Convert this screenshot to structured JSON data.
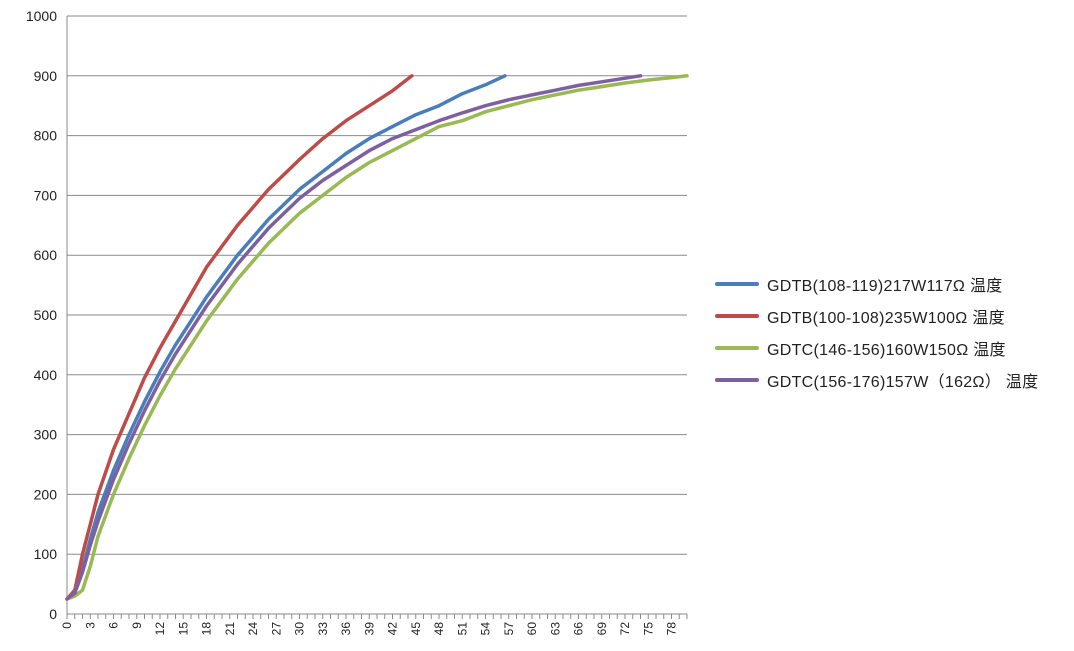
{
  "chart_data": {
    "type": "line",
    "title": "",
    "xlabel": "",
    "ylabel": "",
    "xlim": [
      0,
      80
    ],
    "ylim": [
      0,
      1000
    ],
    "y_ticks": [
      0,
      100,
      200,
      300,
      400,
      500,
      600,
      700,
      800,
      900,
      1000
    ],
    "x_tick_labels": [
      "0",
      "3",
      "6",
      "9",
      "12",
      "15",
      "18",
      "21",
      "24",
      "27",
      "30",
      "33",
      "36",
      "39",
      "42",
      "45",
      "48",
      "51",
      "54",
      "57",
      "60",
      "63",
      "66",
      "69",
      "72",
      "75",
      "78"
    ],
    "x_tick_step_minor": 1,
    "grid": "horizontal",
    "legend_position": "right",
    "series": [
      {
        "name": "GDTB(108-119)217W117Ω 温度",
        "color": "#4a7ebb",
        "x": [
          0,
          1,
          2,
          3,
          4,
          6,
          8,
          10,
          12,
          14,
          16,
          18,
          20,
          22,
          24,
          26,
          28,
          30,
          33,
          36,
          39,
          42,
          45,
          48,
          51,
          54,
          56.5
        ],
        "y": [
          25,
          35,
          75,
          125,
          170,
          240,
          300,
          355,
          405,
          450,
          490,
          530,
          565,
          600,
          630,
          660,
          685,
          710,
          740,
          770,
          795,
          815,
          835,
          850,
          870,
          885,
          900
        ]
      },
      {
        "name": "GDTB(100-108)235W100Ω 温度",
        "color": "#be4b48",
        "x": [
          0,
          1,
          2,
          3,
          4,
          6,
          8,
          10,
          12,
          14,
          16,
          18,
          20,
          22,
          24,
          26,
          28,
          30,
          33,
          36,
          39,
          42,
          44.5
        ],
        "y": [
          25,
          40,
          100,
          150,
          200,
          275,
          335,
          395,
          445,
          490,
          535,
          580,
          615,
          650,
          680,
          710,
          735,
          760,
          795,
          825,
          850,
          875,
          900
        ]
      },
      {
        "name": "GDTC(146-156)160W150Ω 温度",
        "color": "#98b954",
        "x": [
          0,
          1,
          2,
          3,
          4,
          6,
          8,
          10,
          12,
          14,
          16,
          18,
          20,
          22,
          24,
          26,
          28,
          30,
          33,
          36,
          39,
          42,
          45,
          48,
          51,
          54,
          57,
          60,
          63,
          66,
          69,
          72,
          75,
          78,
          80
        ],
        "y": [
          25,
          30,
          40,
          80,
          130,
          200,
          260,
          315,
          365,
          410,
          450,
          490,
          525,
          560,
          590,
          620,
          645,
          670,
          700,
          730,
          755,
          775,
          795,
          815,
          825,
          840,
          850,
          860,
          868,
          876,
          882,
          888,
          893,
          897,
          900
        ]
      },
      {
        "name": "GDTC(156-176)157W（162Ω） 温度",
        "color": "#7d60a0",
        "x": [
          0,
          1,
          2,
          3,
          4,
          6,
          8,
          10,
          12,
          14,
          16,
          18,
          20,
          22,
          24,
          26,
          28,
          30,
          33,
          36,
          39,
          42,
          45,
          48,
          51,
          54,
          57,
          60,
          63,
          66,
          69,
          72,
          74
        ],
        "y": [
          25,
          35,
          70,
          115,
          155,
          225,
          285,
          340,
          390,
          435,
          475,
          515,
          550,
          585,
          615,
          645,
          670,
          695,
          725,
          750,
          775,
          795,
          810,
          825,
          838,
          850,
          860,
          868,
          876,
          884,
          890,
          896,
          900
        ]
      }
    ]
  }
}
